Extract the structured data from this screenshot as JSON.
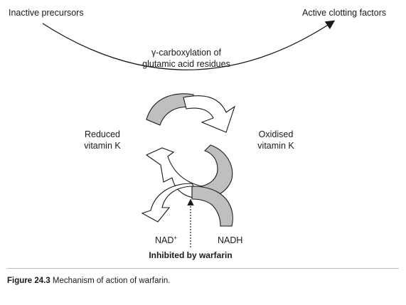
{
  "labels": {
    "inactive": "Inactive precursors",
    "active": "Active clotting factors",
    "carboxylation_line1": "γ-carboxylation of",
    "carboxylation_line2": "glutamic acid residues",
    "reduced_line1": "Reduced",
    "reduced_line2": "vitamin K",
    "oxidised_line1": "Oxidised",
    "oxidised_line2": "vitamin K",
    "nad": "NAD",
    "nad_sup": "+",
    "nadh": "NADH",
    "inhibited": "Inhibited by warfarin"
  },
  "caption": {
    "figure": "Figure 24.3",
    "text": "Mechanism of action of warfarin."
  },
  "colors": {
    "ink": "#1a1a1a",
    "arrow_fill": "#ffffff",
    "arrow_shade": "#bfbfbf",
    "divider": "#bdbdbd"
  }
}
